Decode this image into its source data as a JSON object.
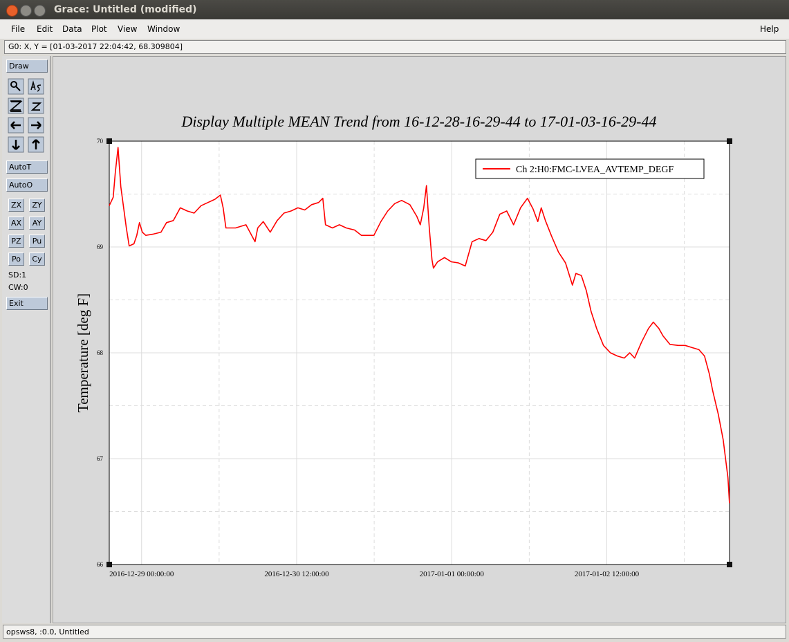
{
  "window": {
    "title": "Grace: Untitled (modified)",
    "menu": [
      "File",
      "Edit",
      "Data",
      "Plot",
      "View",
      "Window"
    ],
    "help": "Help",
    "locator": "G0: X, Y = [01-03-2017 22:04:42, 68.309804]",
    "toolbar": {
      "draw": "Draw",
      "auto_t": "AutoT",
      "auto_o": "AutoO",
      "pairs": [
        [
          "ZX",
          "ZY"
        ],
        [
          "AX",
          "AY"
        ],
        [
          "PZ",
          "Pu"
        ],
        [
          "Po",
          "Cy"
        ]
      ],
      "sd": "SD:1",
      "cw": "CW:0",
      "exit": "Exit"
    },
    "footer": "opsws8, :0.0, Untitled"
  },
  "chart_data": {
    "type": "line",
    "title": "Display Multiple MEAN Trend from 16-12-28-16-29-44 to 17-01-03-16-29-44",
    "y_label": "Temperature [deg F]",
    "xlim": [
      "2016-12-28 16:29:44",
      "2017-01-03 16:29:44"
    ],
    "xticks": [
      "2016-12-29 00:00:00",
      "2016-12-30 12:00:00",
      "2017-01-01 00:00:00",
      "2017-01-02 12:00:00"
    ],
    "xminor_ticks": [
      "2016-12-29 18:00:00",
      "2016-12-31 06:00:00",
      "2017-01-01 18:00:00",
      "2017-01-03 06:00:00"
    ],
    "ylim": [
      66,
      70
    ],
    "yticks": [
      66,
      67,
      68,
      69,
      70
    ],
    "yminor_ticks": [
      66.5,
      67.5,
      68.5,
      69.5
    ],
    "grid": true,
    "legend": "upper right",
    "x": [
      "2016-12-28 16:30:00",
      "2016-12-28 17:25:00",
      "2016-12-28 17:54:00",
      "2016-12-28 18:32:00",
      "2016-12-28 19:11:00",
      "2016-12-28 19:50:00",
      "2016-12-28 20:28:00",
      "2016-12-28 21:07:00",
      "2016-12-28 22:14:00",
      "2016-12-28 22:53:00",
      "2016-12-28 23:31:00",
      "2016-12-29 00:10:00",
      "2016-12-29 00:58:00",
      "2016-12-29 02:34:00",
      "2016-12-29 04:30:00",
      "2016-12-29 05:47:00",
      "2016-12-29 07:23:00",
      "2016-12-29 08:59:00",
      "2016-12-29 10:36:00",
      "2016-12-29 12:12:00",
      "2016-12-29 13:49:00",
      "2016-12-29 15:25:00",
      "2016-12-29 17:01:00",
      "2016-12-29 18:18:00",
      "2016-12-29 18:56:00",
      "2016-12-29 19:35:00",
      "2016-12-29 21:50:00",
      "2016-12-30 00:14:00",
      "2016-12-30 02:20:00",
      "2016-12-30 02:58:00",
      "2016-12-30 04:15:00",
      "2016-12-30 05:52:00",
      "2016-12-30 07:28:00",
      "2016-12-30 09:04:00",
      "2016-12-30 10:41:00",
      "2016-12-30 12:17:00",
      "2016-12-30 13:53:00",
      "2016-12-30 15:30:00",
      "2016-12-30 17:06:00",
      "2016-12-30 18:04:00",
      "2016-12-30 18:42:00",
      "2016-12-30 20:18:00",
      "2016-12-30 21:55:00",
      "2016-12-30 23:31:00",
      "2016-12-31 01:27:00",
      "2016-12-31 03:03:00",
      "2016-12-31 05:56:00",
      "2016-12-31 07:33:00",
      "2016-12-31 09:09:00",
      "2016-12-31 10:46:00",
      "2016-12-31 12:22:00",
      "2016-12-31 14:17:00",
      "2016-12-31 15:53:00",
      "2016-12-31 16:42:00",
      "2016-12-31 17:30:00",
      "2016-12-31 18:08:00",
      "2016-12-31 18:47:00",
      "2016-12-31 19:25:00",
      "2016-12-31 19:45:00",
      "2016-12-31 20:43:00",
      "2016-12-31 22:19:00",
      "2016-12-31 23:55:00",
      "2017-01-01 01:32:00",
      "2017-01-01 03:08:00",
      "2017-01-01 04:44:00",
      "2017-01-01 06:20:00",
      "2017-01-01 07:57:00",
      "2017-01-01 09:33:00",
      "2017-01-01 11:10:00",
      "2017-01-01 12:46:00",
      "2017-01-01 14:22:00",
      "2017-01-01 15:59:00",
      "2017-01-01 17:35:00",
      "2017-01-01 18:52:00",
      "2017-01-01 19:59:00",
      "2017-01-01 20:47:00",
      "2017-01-01 21:45:00",
      "2017-01-01 23:12:00",
      "2017-01-02 00:48:00",
      "2017-01-02 02:25:00",
      "2017-01-02 04:01:00",
      "2017-01-02 04:49:00",
      "2017-01-02 06:06:00",
      "2017-01-02 07:14:00",
      "2017-01-02 08:21:00",
      "2017-01-02 09:38:00",
      "2017-01-02 11:14:00",
      "2017-01-02 12:51:00",
      "2017-01-02 14:27:00",
      "2017-01-02 16:04:00",
      "2017-01-02 17:20:00",
      "2017-01-02 18:28:00",
      "2017-01-02 20:04:00",
      "2017-01-02 21:41:00",
      "2017-01-02 22:48:00",
      "2017-01-03 00:05:00",
      "2017-01-03 01:03:00",
      "2017-01-03 02:39:00",
      "2017-01-03 04:35:00",
      "2017-01-03 06:11:00",
      "2017-01-03 07:47:00",
      "2017-01-03 09:23:00",
      "2017-01-03 10:41:00",
      "2017-01-03 11:48:00",
      "2017-01-03 12:36:00",
      "2017-01-03 13:53:00",
      "2017-01-03 15:01:00",
      "2017-01-03 16:08:00",
      "2017-01-03 16:29:00"
    ],
    "series": [
      {
        "name": "Ch 2:H0:FMC-LVEA_AVTEMP_DEGF",
        "color": "#ff0000",
        "values": [
          69.39,
          69.47,
          69.7,
          69.94,
          69.57,
          69.37,
          69.18,
          69.01,
          69.03,
          69.11,
          69.23,
          69.14,
          69.11,
          69.12,
          69.14,
          69.23,
          69.25,
          69.37,
          69.34,
          69.32,
          69.39,
          69.42,
          69.45,
          69.49,
          69.37,
          69.18,
          69.18,
          69.21,
          69.05,
          69.18,
          69.24,
          69.14,
          69.25,
          69.32,
          69.34,
          69.37,
          69.35,
          69.4,
          69.42,
          69.46,
          69.21,
          69.18,
          69.21,
          69.18,
          69.16,
          69.11,
          69.11,
          69.24,
          69.34,
          69.41,
          69.44,
          69.4,
          69.29,
          69.21,
          69.37,
          69.58,
          69.18,
          68.88,
          68.8,
          68.86,
          68.9,
          68.86,
          68.85,
          68.82,
          69.05,
          69.08,
          69.06,
          69.14,
          69.31,
          69.34,
          69.21,
          69.37,
          69.46,
          69.36,
          69.24,
          69.37,
          69.25,
          69.1,
          68.95,
          68.85,
          68.64,
          68.75,
          68.73,
          68.59,
          68.39,
          68.23,
          68.07,
          68.0,
          67.97,
          67.95,
          68.0,
          67.95,
          68.1,
          68.23,
          68.29,
          68.23,
          68.16,
          68.08,
          68.07,
          68.07,
          68.05,
          68.03,
          67.97,
          67.8,
          67.64,
          67.42,
          67.18,
          66.82,
          66.58
        ]
      }
    ]
  }
}
